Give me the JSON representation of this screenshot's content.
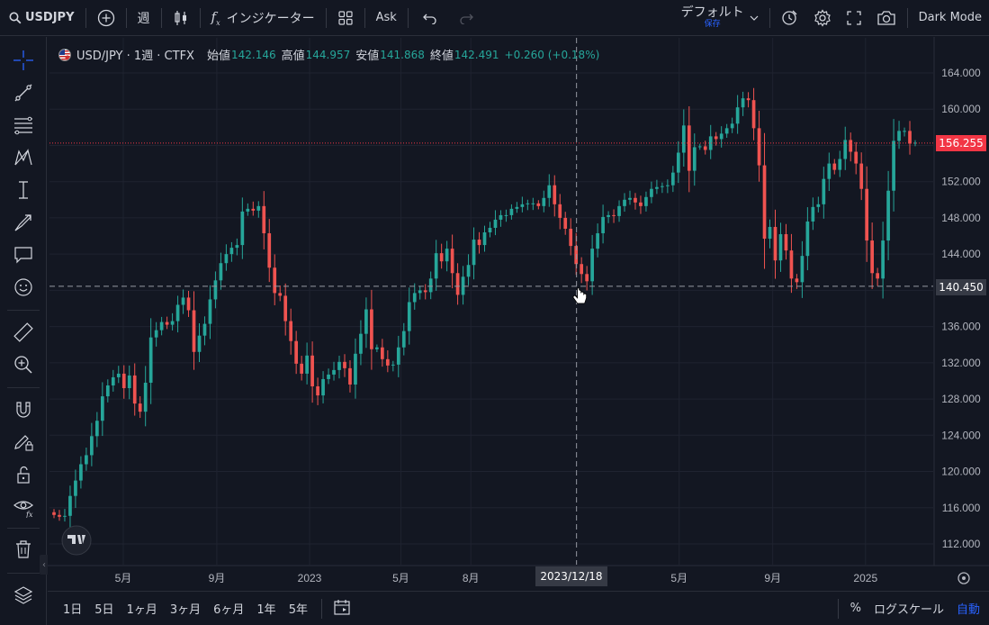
{
  "toolbar": {
    "symbol": "USDJPY",
    "interval": "週",
    "indicators_label": "インジケーター",
    "ask_label": "Ask",
    "layout_name": "デフォルト",
    "layout_sub": "保存",
    "theme_label": "Dark Mode"
  },
  "legend": {
    "symbol_text": "USD/JPY · 1週 · CTFX",
    "open_label": "始値",
    "open_value": "142.146",
    "high_label": "高値",
    "high_value": "144.957",
    "low_label": "安値",
    "low_value": "141.868",
    "close_label": "終値",
    "close_value": "142.491",
    "change_text": "+0.260 (+0.18%)"
  },
  "price_labels": {
    "last_price": "156.255",
    "crosshair_price": "140.450",
    "crosshair_date": "2023/12/18"
  },
  "bottom": {
    "ranges": [
      "1日",
      "5日",
      "1ヶ月",
      "3ヶ月",
      "6ヶ月",
      "1年",
      "5年"
    ],
    "percent_label": "%",
    "log_label": "ログスケール",
    "auto_label": "自動"
  },
  "colors": {
    "up": "#26a69a",
    "down": "#ef5350",
    "background": "#131722",
    "grid": "#1f2330",
    "last_price_line": "#f23645"
  },
  "chart_data": {
    "type": "candlestick",
    "title": "USD/JPY · 1週 · CTFX",
    "ylim": [
      110,
      166
    ],
    "y_ticks": [
      112,
      116,
      120,
      124,
      128,
      132,
      136,
      140,
      144,
      148,
      152,
      156,
      160,
      164
    ],
    "y_tick_labels": [
      "112.000",
      "116.000",
      "120.000",
      "124.000",
      "128.000",
      "132.000",
      "136.000",
      "140.000",
      "144.000",
      "148.000",
      "152.000",
      "156.000",
      "160.000",
      "164.000"
    ],
    "x_range": [
      "2022-01-24",
      "2025-03-31"
    ],
    "x_ticks": [
      {
        "date": "2022-05-01",
        "label": "5月"
      },
      {
        "date": "2022-09-01",
        "label": "9月"
      },
      {
        "date": "2023-01-01",
        "label": "2023"
      },
      {
        "date": "2023-05-01",
        "label": "5月"
      },
      {
        "date": "2023-08-01",
        "label": "8月"
      },
      {
        "date": "2024-05-01",
        "label": "5月"
      },
      {
        "date": "2024-09-01",
        "label": "9月"
      },
      {
        "date": "2025-01-01",
        "label": "2025"
      }
    ],
    "last_price": 156.255,
    "crosshair": {
      "date": "2023-12-18",
      "price": 140.45
    },
    "closes": [
      115.2,
      115.0,
      115.1,
      117.3,
      119.0,
      120.8,
      121.8,
      123.9,
      125.6,
      128.3,
      129.5,
      130.4,
      130.8,
      129.2,
      130.6,
      127.5,
      126.6,
      129.8,
      134.8,
      135.6,
      136.5,
      136.2,
      136.6,
      138.4,
      139.2,
      137.8,
      133.2,
      135.0,
      136.3,
      139.0,
      141.1,
      143.0,
      144.0,
      144.7,
      145.0,
      148.7,
      149.0,
      148.8,
      149.3,
      146.3,
      142.5,
      139.7,
      139.4,
      136.6,
      134.4,
      131.9,
      130.8,
      132.8,
      129.4,
      128.4,
      130.2,
      130.7,
      131.2,
      132.1,
      131.4,
      129.6,
      133.0,
      135.2,
      137.9,
      133.5,
      133.7,
      132.4,
      131.7,
      131.8,
      133.7,
      135.5,
      138.7,
      139.7,
      140.0,
      139.8,
      141.3,
      144.1,
      143.2,
      144.6,
      141.9,
      139.5,
      141.5,
      142.8,
      145.6,
      145.0,
      146.4,
      146.9,
      147.8,
      148.3,
      148.3,
      149.0,
      149.2,
      149.5,
      149.6,
      149.6,
      149.3,
      150.2,
      151.6,
      149.5,
      148.0,
      146.8,
      144.9,
      142.9,
      141.8,
      141.0,
      144.6,
      146.3,
      148.1,
      148.3,
      148.2,
      149.3,
      150.0,
      150.2,
      149.7,
      149.3,
      150.3,
      151.2,
      151.4,
      151.5,
      151.6,
      153.0,
      155.2,
      158.2,
      153.2,
      155.8,
      155.9,
      155.5,
      157.0,
      156.7,
      157.3,
      157.9,
      158.4,
      160.2,
      161.2,
      161.0,
      157.9,
      153.8,
      145.7,
      147.0,
      143.3,
      146.2,
      144.4,
      141.3,
      140.9,
      143.8,
      147.6,
      149.2,
      149.5,
      152.3,
      154.0,
      153.3,
      154.5,
      156.6,
      155.3,
      154.0,
      151.2,
      145.5,
      141.9,
      141.3,
      145.5,
      151.0,
      156.5,
      157.6,
      157.6,
      156.2,
      156.3
    ]
  }
}
